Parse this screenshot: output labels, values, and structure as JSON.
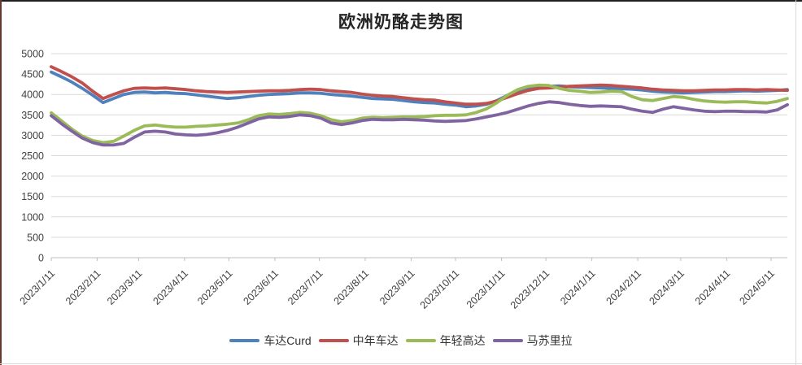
{
  "chart_data": {
    "type": "line",
    "title": "欧洲奶酪走势图",
    "xlabel": "",
    "ylabel": "",
    "ylim": [
      0,
      5000
    ],
    "y_tick_step": 500,
    "y_tick_labels": [
      "0",
      "500",
      "1000",
      "1500",
      "2000",
      "2500",
      "3000",
      "3500",
      "4000",
      "4500",
      "5000"
    ],
    "x_tick_labels": [
      "2023/1/11",
      "2023/2/11",
      "2023/3/11",
      "2023/4/11",
      "2023/5/11",
      "2023/6/11",
      "2023/7/11",
      "2023/8/11",
      "2023/9/11",
      "2023/10/11",
      "2023/11/11",
      "2023/12/11",
      "2024/1/11",
      "2024/2/11",
      "2024/3/11",
      "2024/4/11",
      "2024/5/11"
    ],
    "x_start_date": "2023/1/11",
    "x_step_days": 7,
    "grid": true,
    "legend_position": "bottom",
    "series": [
      {
        "name": "车达Curd",
        "color": "#4F81BD",
        "values": [
          4550,
          4430,
          4300,
          4150,
          3980,
          3800,
          3900,
          4000,
          4050,
          4060,
          4040,
          4050,
          4030,
          4020,
          3990,
          3960,
          3930,
          3900,
          3920,
          3950,
          3980,
          4000,
          4010,
          4020,
          4040,
          4040,
          4030,
          4000,
          3980,
          3960,
          3930,
          3900,
          3890,
          3880,
          3850,
          3820,
          3800,
          3790,
          3760,
          3740,
          3700,
          3720,
          3760,
          3850,
          3980,
          4080,
          4150,
          4180,
          4200,
          4210,
          4190,
          4180,
          4170,
          4160,
          4150,
          4140,
          4130,
          4110,
          4080,
          4060,
          4050,
          4040,
          4050,
          4060,
          4070,
          4070,
          4080,
          4090,
          4080,
          4090,
          4100,
          4120
        ]
      },
      {
        "name": "中年车达",
        "color": "#C0504D",
        "values": [
          4680,
          4560,
          4430,
          4280,
          4080,
          3900,
          4000,
          4090,
          4150,
          4160,
          4150,
          4160,
          4140,
          4120,
          4090,
          4070,
          4060,
          4050,
          4060,
          4070,
          4080,
          4090,
          4090,
          4100,
          4120,
          4130,
          4120,
          4090,
          4070,
          4050,
          4010,
          3980,
          3960,
          3950,
          3920,
          3890,
          3870,
          3860,
          3820,
          3790,
          3760,
          3760,
          3780,
          3840,
          3930,
          4020,
          4100,
          4150,
          4160,
          4180,
          4200,
          4210,
          4220,
          4230,
          4220,
          4200,
          4180,
          4160,
          4130,
          4110,
          4100,
          4090,
          4090,
          4100,
          4110,
          4110,
          4120,
          4120,
          4110,
          4120,
          4110,
          4100
        ]
      },
      {
        "name": "年轻高达",
        "color": "#9BBB59",
        "values": [
          3550,
          3350,
          3150,
          2980,
          2870,
          2820,
          2850,
          2980,
          3120,
          3230,
          3250,
          3220,
          3200,
          3200,
          3220,
          3230,
          3250,
          3270,
          3300,
          3380,
          3480,
          3520,
          3510,
          3530,
          3560,
          3540,
          3480,
          3380,
          3330,
          3360,
          3420,
          3440,
          3430,
          3440,
          3450,
          3450,
          3460,
          3480,
          3490,
          3490,
          3500,
          3560,
          3650,
          3800,
          3980,
          4120,
          4200,
          4230,
          4220,
          4150,
          4100,
          4080,
          4050,
          4060,
          4080,
          4070,
          3950,
          3870,
          3850,
          3900,
          3950,
          3930,
          3880,
          3840,
          3820,
          3810,
          3820,
          3820,
          3800,
          3790,
          3830,
          3900
        ]
      },
      {
        "name": "马苏里拉",
        "color": "#8064A2",
        "values": [
          3480,
          3280,
          3100,
          2930,
          2820,
          2760,
          2760,
          2800,
          2950,
          3080,
          3100,
          3080,
          3030,
          3010,
          3000,
          3020,
          3060,
          3120,
          3200,
          3300,
          3400,
          3450,
          3440,
          3460,
          3500,
          3480,
          3420,
          3300,
          3260,
          3300,
          3360,
          3390,
          3380,
          3380,
          3390,
          3380,
          3370,
          3350,
          3340,
          3350,
          3360,
          3400,
          3450,
          3500,
          3560,
          3640,
          3720,
          3780,
          3820,
          3800,
          3760,
          3730,
          3710,
          3720,
          3710,
          3700,
          3640,
          3590,
          3560,
          3640,
          3700,
          3660,
          3620,
          3590,
          3580,
          3590,
          3590,
          3580,
          3580,
          3570,
          3620,
          3750
        ]
      }
    ]
  }
}
